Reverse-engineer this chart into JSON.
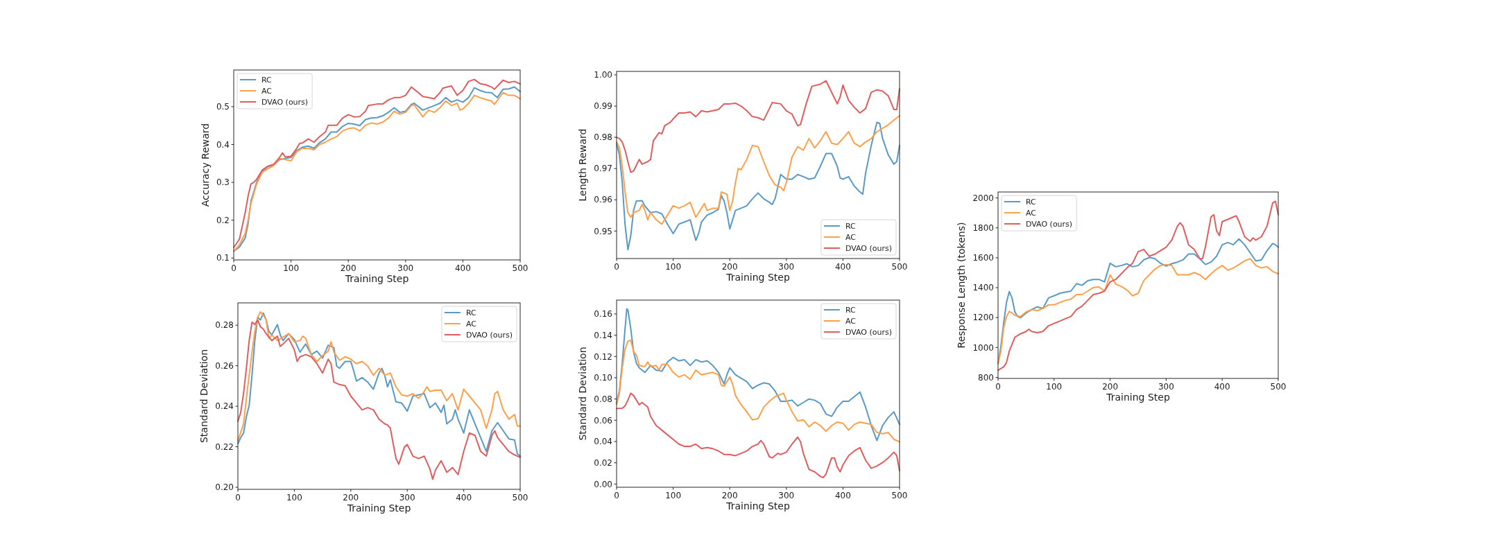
{
  "chart_data": [
    {
      "type": "line",
      "xlabel": "Training Step",
      "ylabel": "Accuracy Reward",
      "xlim": [
        0,
        500
      ],
      "xticks": [
        0,
        100,
        200,
        300,
        400,
        500
      ],
      "ylim": [
        0.095,
        0.597
      ],
      "yticks": [
        0.1,
        0.2,
        0.3,
        0.4,
        0.5
      ],
      "legend": "top left",
      "series": [
        {
          "name": "RC",
          "color": "#5799c7",
          "x": [
            0,
            10,
            20,
            25,
            30,
            35,
            40,
            50,
            60,
            70,
            80,
            90,
            100,
            110,
            120,
            130,
            140,
            150,
            160,
            170,
            180,
            190,
            200,
            210,
            220,
            230,
            240,
            250,
            260,
            270,
            280,
            290,
            300,
            310,
            315,
            330,
            340,
            350,
            360,
            370,
            380,
            390,
            400,
            410,
            420,
            430,
            440,
            450,
            460,
            470,
            480,
            490,
            500
          ],
          "values": [
            0.118,
            0.129,
            0.153,
            0.19,
            0.25,
            0.275,
            0.3,
            0.33,
            0.342,
            0.345,
            0.36,
            0.363,
            0.366,
            0.384,
            0.393,
            0.396,
            0.39,
            0.405,
            0.415,
            0.433,
            0.433,
            0.448,
            0.456,
            0.454,
            0.45,
            0.466,
            0.47,
            0.471,
            0.476,
            0.485,
            0.497,
            0.485,
            0.488,
            0.506,
            0.509,
            0.491,
            0.497,
            0.503,
            0.509,
            0.524,
            0.512,
            0.518,
            0.512,
            0.524,
            0.55,
            0.543,
            0.538,
            0.537,
            0.524,
            0.546,
            0.547,
            0.552,
            0.54
          ]
        },
        {
          "name": "AC",
          "color": "#ff9f4a",
          "x": [
            0,
            10,
            20,
            25,
            30,
            40,
            50,
            60,
            70,
            80,
            90,
            100,
            110,
            120,
            130,
            140,
            150,
            160,
            170,
            180,
            190,
            200,
            210,
            220,
            230,
            240,
            250,
            260,
            270,
            280,
            290,
            300,
            310,
            315,
            330,
            340,
            350,
            360,
            370,
            380,
            390,
            395,
            400,
            410,
            420,
            430,
            440,
            450,
            455,
            470,
            480,
            490,
            500
          ],
          "values": [
            0.118,
            0.135,
            0.165,
            0.2,
            0.244,
            0.296,
            0.327,
            0.336,
            0.345,
            0.363,
            0.36,
            0.357,
            0.381,
            0.39,
            0.39,
            0.386,
            0.4,
            0.406,
            0.415,
            0.421,
            0.436,
            0.442,
            0.444,
            0.436,
            0.451,
            0.457,
            0.454,
            0.459,
            0.47,
            0.488,
            0.48,
            0.485,
            0.503,
            0.505,
            0.473,
            0.491,
            0.485,
            0.497,
            0.515,
            0.503,
            0.509,
            0.491,
            0.494,
            0.509,
            0.53,
            0.524,
            0.519,
            0.515,
            0.506,
            0.537,
            0.53,
            0.53,
            0.521
          ]
        },
        {
          "name": "DVAO (ours)",
          "color": "#e05d5e",
          "x": [
            0,
            10,
            20,
            25,
            30,
            35,
            40,
            50,
            60,
            70,
            80,
            85,
            90,
            100,
            110,
            115,
            120,
            130,
            140,
            150,
            160,
            165,
            180,
            190,
            200,
            210,
            220,
            230,
            235,
            250,
            260,
            270,
            280,
            290,
            300,
            310,
            320,
            330,
            340,
            350,
            360,
            365,
            380,
            390,
            400,
            410,
            420,
            430,
            440,
            450,
            455,
            470,
            480,
            490,
            500
          ],
          "values": [
            0.128,
            0.15,
            0.22,
            0.263,
            0.296,
            0.3,
            0.308,
            0.333,
            0.343,
            0.348,
            0.366,
            0.378,
            0.367,
            0.369,
            0.39,
            0.403,
            0.404,
            0.415,
            0.406,
            0.421,
            0.433,
            0.451,
            0.451,
            0.47,
            0.479,
            0.473,
            0.474,
            0.488,
            0.503,
            0.507,
            0.507,
            0.518,
            0.524,
            0.524,
            0.53,
            0.552,
            0.54,
            0.527,
            0.524,
            0.521,
            0.537,
            0.549,
            0.555,
            0.53,
            0.543,
            0.567,
            0.572,
            0.561,
            0.558,
            0.552,
            0.546,
            0.57,
            0.564,
            0.567,
            0.56
          ]
        }
      ]
    },
    {
      "type": "line",
      "xlabel": "Training Step",
      "ylabel": "Length Reward",
      "xlim": [
        0,
        500
      ],
      "xticks": [
        0,
        100,
        200,
        300,
        400,
        500
      ],
      "ylim": [
        0.9412,
        1.0011
      ],
      "yticks": [
        0.95,
        0.96,
        0.97,
        0.98,
        0.99,
        {
          "value": 1,
          "label": "1.00"
        }
      ],
      "legend": "bottom right",
      "series": [
        {
          "name": "RC",
          "color": "#5799c7",
          "x": [
            0,
            5,
            10,
            15,
            20,
            25,
            30,
            35,
            45,
            50,
            60,
            70,
            80,
            90,
            100,
            110,
            120,
            130,
            140,
            145,
            150,
            160,
            170,
            180,
            185,
            190,
            195,
            200,
            205,
            210,
            220,
            230,
            240,
            250,
            260,
            270,
            275,
            280,
            290,
            300,
            310,
            320,
            330,
            340,
            350,
            360,
            370,
            380,
            390,
            395,
            400,
            410,
            420,
            430,
            435,
            440,
            450,
            460,
            465,
            470,
            480,
            490,
            495,
            500
          ],
          "values": [
            0.978,
            0.9744,
            0.9655,
            0.952,
            0.944,
            0.9484,
            0.9566,
            0.9596,
            0.9597,
            0.958,
            0.9559,
            0.9562,
            0.9555,
            0.9522,
            0.9492,
            0.9522,
            0.9529,
            0.9536,
            0.947,
            0.9492,
            0.9529,
            0.9551,
            0.9559,
            0.957,
            0.9614,
            0.9596,
            0.9559,
            0.9507,
            0.9536,
            0.9566,
            0.9573,
            0.9581,
            0.9603,
            0.9622,
            0.9603,
            0.9592,
            0.9585,
            0.9603,
            0.9681,
            0.9666,
            0.9666,
            0.9681,
            0.9674,
            0.9666,
            0.967,
            0.9707,
            0.9748,
            0.9748,
            0.9707,
            0.967,
            0.9666,
            0.9674,
            0.9644,
            0.9625,
            0.9618,
            0.9685,
            0.9774,
            0.9848,
            0.9844,
            0.9796,
            0.9744,
            0.9714,
            0.9722,
            0.9774
          ]
        },
        {
          "name": "AC",
          "color": "#ff9f4a",
          "x": [
            0,
            5,
            10,
            15,
            20,
            25,
            30,
            40,
            45,
            50,
            55,
            60,
            70,
            80,
            90,
            100,
            110,
            120,
            130,
            140,
            150,
            155,
            160,
            170,
            180,
            185,
            195,
            200,
            205,
            210,
            215,
            220,
            230,
            240,
            250,
            260,
            270,
            280,
            290,
            295,
            300,
            310,
            320,
            330,
            340,
            350,
            360,
            370,
            380,
            390,
            400,
            410,
            420,
            430,
            440,
            450,
            460,
            470,
            480,
            490,
            500
          ],
          "values": [
            0.9785,
            0.9766,
            0.9707,
            0.9625,
            0.9559,
            0.9544,
            0.9559,
            0.9566,
            0.9585,
            0.9566,
            0.9536,
            0.9559,
            0.9536,
            0.9522,
            0.9551,
            0.9581,
            0.9573,
            0.9581,
            0.9592,
            0.9544,
            0.9573,
            0.9588,
            0.9566,
            0.9573,
            0.9573,
            0.9625,
            0.9618,
            0.9566,
            0.9596,
            0.9655,
            0.97,
            0.9696,
            0.9729,
            0.9774,
            0.977,
            0.9722,
            0.9677,
            0.9648,
            0.964,
            0.9629,
            0.9655,
            0.9737,
            0.977,
            0.9759,
            0.9796,
            0.9766,
            0.9789,
            0.9818,
            0.9781,
            0.9777,
            0.9796,
            0.9818,
            0.9781,
            0.977,
            0.9785,
            0.9796,
            0.9818,
            0.9829,
            0.984,
            0.9855,
            0.9869
          ]
        },
        {
          "name": "DVAO (ours)",
          "color": "#e05d5e",
          "x": [
            0,
            5,
            10,
            15,
            20,
            25,
            30,
            40,
            45,
            55,
            60,
            65,
            75,
            80,
            85,
            95,
            100,
            110,
            120,
            130,
            140,
            150,
            160,
            170,
            180,
            190,
            200,
            210,
            220,
            230,
            240,
            250,
            260,
            270,
            275,
            290,
            300,
            310,
            320,
            325,
            335,
            345,
            360,
            370,
            380,
            390,
            395,
            400,
            410,
            420,
            430,
            440,
            450,
            460,
            470,
            480,
            490,
            495,
            500
          ],
          "values": [
            0.98,
            0.9796,
            0.9785,
            0.9759,
            0.9722,
            0.9688,
            0.9692,
            0.9729,
            0.9714,
            0.9722,
            0.9729,
            0.9789,
            0.9815,
            0.9811,
            0.9837,
            0.9848,
            0.9859,
            0.9878,
            0.9878,
            0.9881,
            0.9866,
            0.9885,
            0.9881,
            0.9885,
            0.9889,
            0.9907,
            0.9907,
            0.9909,
            0.99,
            0.9885,
            0.9866,
            0.9863,
            0.9855,
            0.9892,
            0.9911,
            0.9907,
            0.9885,
            0.9874,
            0.9837,
            0.9841,
            0.9907,
            0.9963,
            0.997,
            0.9981,
            0.9944,
            0.9907,
            0.9929,
            0.9967,
            0.9918,
            0.9896,
            0.9878,
            0.9892,
            0.9944,
            0.9952,
            0.9948,
            0.9933,
            0.9889,
            0.9889,
            0.9955
          ]
        }
      ]
    },
    {
      "type": "line",
      "xlabel": "Training Step",
      "ylabel": "Response Length (tokens)",
      "xlim": [
        0,
        500
      ],
      "xticks": [
        0,
        100,
        200,
        300,
        400,
        500
      ],
      "ylim": [
        793,
        2040
      ],
      "yticks": [
        800,
        1000,
        1200,
        1400,
        1600,
        1800,
        2000
      ],
      "legend": "top left",
      "series": [
        {
          "name": "RC",
          "color": "#5799c7",
          "x": [
            0,
            5,
            10,
            15,
            20,
            25,
            30,
            35,
            40,
            50,
            60,
            70,
            80,
            90,
            100,
            110,
            120,
            130,
            140,
            150,
            160,
            170,
            180,
            190,
            200,
            210,
            220,
            230,
            240,
            250,
            260,
            270,
            280,
            290,
            300,
            310,
            320,
            330,
            340,
            350,
            360,
            370,
            380,
            390,
            400,
            410,
            420,
            430,
            440,
            450,
            460,
            470,
            480,
            490,
            495,
            500
          ],
          "values": [
            890,
            1006,
            1161,
            1300,
            1374,
            1331,
            1238,
            1207,
            1199,
            1230,
            1254,
            1272,
            1261,
            1331,
            1346,
            1362,
            1370,
            1377,
            1427,
            1416,
            1447,
            1455,
            1455,
            1439,
            1563,
            1540,
            1548,
            1560,
            1540,
            1548,
            1586,
            1602,
            1594,
            1563,
            1545,
            1560,
            1571,
            1586,
            1625,
            1625,
            1594,
            1555,
            1571,
            1610,
            1687,
            1702,
            1687,
            1726,
            1687,
            1633,
            1579,
            1586,
            1648,
            1695,
            1687,
            1671
          ]
        },
        {
          "name": "AC",
          "color": "#ff9f4a",
          "x": [
            0,
            5,
            10,
            15,
            20,
            25,
            30,
            40,
            50,
            60,
            70,
            80,
            90,
            100,
            110,
            120,
            130,
            140,
            150,
            160,
            170,
            180,
            190,
            200,
            210,
            220,
            230,
            240,
            250,
            260,
            270,
            280,
            290,
            300,
            310,
            320,
            330,
            340,
            350,
            360,
            370,
            380,
            390,
            400,
            410,
            420,
            430,
            440,
            450,
            460,
            470,
            480,
            490,
            500
          ],
          "values": [
            890,
            975,
            1130,
            1207,
            1241,
            1230,
            1215,
            1207,
            1238,
            1254,
            1246,
            1261,
            1285,
            1285,
            1300,
            1315,
            1323,
            1354,
            1354,
            1377,
            1401,
            1405,
            1377,
            1486,
            1424,
            1408,
            1385,
            1346,
            1362,
            1447,
            1486,
            1524,
            1548,
            1555,
            1548,
            1486,
            1486,
            1486,
            1501,
            1486,
            1455,
            1493,
            1524,
            1548,
            1517,
            1532,
            1555,
            1579,
            1594,
            1548,
            1532,
            1540,
            1509,
            1493
          ]
        },
        {
          "name": "DVAO (ours)",
          "color": "#e05d5e",
          "x": [
            0,
            10,
            15,
            20,
            25,
            30,
            40,
            50,
            55,
            60,
            70,
            80,
            90,
            100,
            110,
            120,
            130,
            140,
            150,
            160,
            170,
            180,
            190,
            200,
            210,
            220,
            230,
            240,
            250,
            260,
            270,
            280,
            290,
            300,
            310,
            320,
            325,
            330,
            340,
            350,
            360,
            365,
            370,
            380,
            385,
            390,
            395,
            400,
            410,
            420,
            425,
            430,
            440,
            450,
            455,
            460,
            470,
            480,
            490,
            495,
            500
          ],
          "values": [
            848,
            870,
            898,
            975,
            1021,
            1068,
            1091,
            1107,
            1122,
            1107,
            1099,
            1107,
            1145,
            1161,
            1176,
            1192,
            1207,
            1254,
            1277,
            1315,
            1354,
            1362,
            1377,
            1439,
            1455,
            1493,
            1532,
            1563,
            1641,
            1656,
            1610,
            1625,
            1648,
            1671,
            1718,
            1811,
            1834,
            1811,
            1687,
            1656,
            1594,
            1594,
            1671,
            1873,
            1888,
            1780,
            1749,
            1842,
            1857,
            1873,
            1881,
            1842,
            1741,
            1710,
            1733,
            1718,
            1741,
            1811,
            1966,
            1978,
            1888
          ]
        }
      ]
    },
    {
      "type": "line",
      "xlabel": "Training Step",
      "ylabel": "Standard Deviation",
      "xlim": [
        0,
        500
      ],
      "xticks": [
        0,
        100,
        200,
        300,
        400,
        500
      ],
      "ylim": [
        0.199,
        0.291
      ],
      "yticks": [
        {
          "value": 0.2,
          "label": "0.20"
        },
        0.22,
        0.24,
        0.26,
        0.28
      ],
      "legend": "top right",
      "series": [
        {
          "name": "RC",
          "color": "#5799c7",
          "x": [
            0,
            5,
            10,
            15,
            20,
            25,
            30,
            35,
            40,
            45,
            50,
            55,
            60,
            70,
            75,
            80,
            90,
            100,
            110,
            120,
            130,
            140,
            150,
            160,
            170,
            175,
            180,
            190,
            200,
            205,
            210,
            220,
            230,
            240,
            250,
            255,
            260,
            265,
            270,
            280,
            290,
            300,
            310,
            320,
            330,
            340,
            350,
            360,
            365,
            370,
            380,
            385,
            390,
            400,
            410,
            420,
            430,
            440,
            450,
            460,
            470,
            480,
            490,
            495,
            500
          ],
          "values": [
            0.2215,
            0.2245,
            0.2268,
            0.2348,
            0.2405,
            0.2553,
            0.2724,
            0.2838,
            0.2826,
            0.286,
            0.2826,
            0.2769,
            0.2752,
            0.2803,
            0.2752,
            0.2724,
            0.2758,
            0.2729,
            0.2667,
            0.2707,
            0.2655,
            0.2672,
            0.2638,
            0.2701,
            0.269,
            0.2598,
            0.2587,
            0.2621,
            0.2621,
            0.2576,
            0.2524,
            0.2541,
            0.2519,
            0.2484,
            0.2564,
            0.2587,
            0.2553,
            0.2496,
            0.253,
            0.2422,
            0.2416,
            0.2376,
            0.245,
            0.2456,
            0.2462,
            0.2393,
            0.2416,
            0.237,
            0.2405,
            0.2313,
            0.2336,
            0.2382,
            0.2336,
            0.2268,
            0.2382,
            0.2313,
            0.2245,
            0.2177,
            0.2279,
            0.2319,
            0.2279,
            0.2239,
            0.2234,
            0.2165,
            0.2154
          ]
        },
        {
          "name": "AC",
          "color": "#ff9f4a",
          "x": [
            0,
            10,
            15,
            20,
            25,
            30,
            35,
            40,
            45,
            50,
            55,
            60,
            70,
            80,
            90,
            100,
            110,
            115,
            120,
            130,
            140,
            150,
            160,
            165,
            170,
            180,
            190,
            200,
            210,
            220,
            230,
            240,
            250,
            260,
            270,
            280,
            290,
            300,
            310,
            320,
            330,
            335,
            340,
            350,
            360,
            370,
            380,
            390,
            400,
            410,
            420,
            430,
            440,
            450,
            455,
            460,
            470,
            480,
            490,
            495,
            500
          ],
          "values": [
            0.223,
            0.2313,
            0.2439,
            0.2553,
            0.2667,
            0.2769,
            0.2838,
            0.2866,
            0.2849,
            0.2826,
            0.2735,
            0.2752,
            0.2724,
            0.2741,
            0.2758,
            0.2718,
            0.2724,
            0.2746,
            0.2735,
            0.2655,
            0.2621,
            0.265,
            0.2672,
            0.2718,
            0.2667,
            0.2627,
            0.2644,
            0.2632,
            0.261,
            0.2621,
            0.2598,
            0.2553,
            0.2587,
            0.2553,
            0.2564,
            0.2496,
            0.2456,
            0.245,
            0.2462,
            0.2439,
            0.2473,
            0.2496,
            0.2473,
            0.2479,
            0.2479,
            0.2427,
            0.2462,
            0.2382,
            0.2484,
            0.245,
            0.2416,
            0.2382,
            0.2291,
            0.2382,
            0.2462,
            0.2473,
            0.2382,
            0.2336,
            0.2359,
            0.2302,
            0.2302
          ]
        },
        {
          "name": "DVAO (ours)",
          "color": "#e05d5e",
          "x": [
            0,
            5,
            10,
            15,
            20,
            25,
            30,
            35,
            40,
            45,
            50,
            60,
            70,
            75,
            80,
            90,
            100,
            105,
            110,
            120,
            130,
            140,
            150,
            160,
            165,
            170,
            180,
            190,
            200,
            210,
            220,
            230,
            240,
            250,
            260,
            265,
            270,
            280,
            285,
            295,
            300,
            310,
            320,
            330,
            340,
            345,
            350,
            360,
            370,
            380,
            390,
            400,
            410,
            420,
            430,
            440,
            450,
            455,
            460,
            470,
            480,
            490,
            500
          ],
          "values": [
            0.2325,
            0.237,
            0.2462,
            0.2587,
            0.2724,
            0.2815,
            0.2803,
            0.2826,
            0.2792,
            0.2781,
            0.2758,
            0.2724,
            0.2746,
            0.2695,
            0.2707,
            0.2735,
            0.2678,
            0.2621,
            0.2644,
            0.2655,
            0.2644,
            0.261,
            0.2564,
            0.2632,
            0.261,
            0.2519,
            0.2507,
            0.2501,
            0.245,
            0.2416,
            0.2382,
            0.2393,
            0.2382,
            0.2336,
            0.2313,
            0.2308,
            0.2291,
            0.2142,
            0.2114,
            0.2199,
            0.2211,
            0.2154,
            0.2142,
            0.2154,
            0.2091,
            0.204,
            0.2085,
            0.2131,
            0.2074,
            0.2097,
            0.2063,
            0.2177,
            0.2268,
            0.2256,
            0.2177,
            0.2154,
            0.2256,
            0.2279,
            0.2245,
            0.2211,
            0.2177,
            0.216,
            0.2148
          ]
        }
      ]
    },
    {
      "type": "line",
      "xlabel": "Training Step",
      "ylabel": "Standard Deviation",
      "xlim": [
        0,
        500
      ],
      "xticks": [
        0,
        100,
        200,
        300,
        400,
        500
      ],
      "ylim": [
        -0.003,
        0.173
      ],
      "yticks": [
        {
          "value": 0,
          "label": "0.00"
        },
        0.02,
        0.04,
        0.06,
        0.08,
        {
          "value": 0.1,
          "label": "0.10"
        },
        0.12,
        0.14,
        0.16
      ],
      "legend": "top right",
      "series": [
        {
          "name": "RC",
          "color": "#5799c7",
          "x": [
            0,
            5,
            10,
            15,
            18,
            20,
            25,
            30,
            35,
            40,
            50,
            55,
            60,
            70,
            80,
            90,
            100,
            110,
            120,
            130,
            140,
            150,
            160,
            170,
            180,
            190,
            195,
            200,
            210,
            220,
            230,
            240,
            250,
            260,
            270,
            280,
            290,
            300,
            310,
            320,
            330,
            340,
            350,
            360,
            370,
            380,
            390,
            400,
            410,
            420,
            430,
            440,
            450,
            460,
            470,
            480,
            490,
            500
          ],
          "values": [
            0.076,
            0.0876,
            0.1137,
            0.1463,
            0.1648,
            0.1637,
            0.1463,
            0.1246,
            0.1137,
            0.1093,
            0.105,
            0.1083,
            0.1115,
            0.1072,
            0.1061,
            0.1148,
            0.1191,
            0.1159,
            0.117,
            0.1115,
            0.117,
            0.1148,
            0.1159,
            0.1115,
            0.105,
            0.0941,
            0.1028,
            0.1093,
            0.1028,
            0.0996,
            0.0963,
            0.0898,
            0.093,
            0.0952,
            0.0941,
            0.0876,
            0.0778,
            0.0778,
            0.0789,
            0.0735,
            0.0767,
            0.08,
            0.0789,
            0.0757,
            0.0659,
            0.0637,
            0.0724,
            0.0778,
            0.0778,
            0.0822,
            0.0865,
            0.0724,
            0.055,
            0.0409,
            0.055,
            0.0626,
            0.068,
            0.0561
          ]
        },
        {
          "name": "AC",
          "color": "#ff9f4a",
          "x": [
            0,
            5,
            10,
            15,
            20,
            25,
            30,
            35,
            40,
            50,
            55,
            60,
            70,
            75,
            80,
            90,
            100,
            110,
            120,
            130,
            140,
            150,
            160,
            170,
            180,
            185,
            190,
            200,
            205,
            210,
            220,
            230,
            240,
            250,
            260,
            270,
            280,
            290,
            295,
            300,
            310,
            320,
            330,
            340,
            350,
            360,
            370,
            380,
            390,
            400,
            410,
            420,
            430,
            440,
            450,
            460,
            470,
            480,
            490,
            500
          ],
          "values": [
            0.075,
            0.0854,
            0.1093,
            0.1267,
            0.1343,
            0.1354,
            0.1246,
            0.1213,
            0.1115,
            0.1104,
            0.1148,
            0.1104,
            0.1115,
            0.1072,
            0.1126,
            0.1126,
            0.105,
            0.1007,
            0.1028,
            0.0985,
            0.1072,
            0.1028,
            0.1039,
            0.105,
            0.1028,
            0.093,
            0.092,
            0.1007,
            0.0941,
            0.0833,
            0.0746,
            0.068,
            0.0604,
            0.0615,
            0.0724,
            0.0778,
            0.0822,
            0.0843,
            0.0854,
            0.0789,
            0.068,
            0.0593,
            0.0604,
            0.0539,
            0.0583,
            0.055,
            0.0496,
            0.055,
            0.0583,
            0.0572,
            0.0507,
            0.0561,
            0.0583,
            0.0572,
            0.0561,
            0.0485,
            0.0474,
            0.0485,
            0.042,
            0.0398
          ]
        },
        {
          "name": "DVAO (ours)",
          "color": "#e05d5e",
          "x": [
            0,
            10,
            15,
            20,
            25,
            30,
            40,
            45,
            50,
            55,
            60,
            70,
            80,
            90,
            100,
            110,
            120,
            130,
            140,
            150,
            160,
            170,
            180,
            190,
            200,
            210,
            220,
            230,
            240,
            250,
            255,
            260,
            270,
            275,
            285,
            290,
            300,
            310,
            320,
            325,
            330,
            340,
            350,
            360,
            365,
            370,
            380,
            385,
            390,
            395,
            400,
            410,
            420,
            430,
            440,
            450,
            460,
            470,
            480,
            490,
            495,
            500
          ],
          "values": [
            0.071,
            0.0713,
            0.0735,
            0.0789,
            0.0854,
            0.0833,
            0.0746,
            0.0767,
            0.0746,
            0.0724,
            0.0637,
            0.055,
            0.0507,
            0.0463,
            0.042,
            0.0376,
            0.0354,
            0.0354,
            0.0376,
            0.0333,
            0.0343,
            0.0333,
            0.0311,
            0.0278,
            0.0278,
            0.0267,
            0.0289,
            0.0311,
            0.0354,
            0.0376,
            0.0409,
            0.0376,
            0.0257,
            0.0246,
            0.0289,
            0.0278,
            0.03,
            0.0376,
            0.0441,
            0.0398,
            0.0289,
            0.0137,
            0.0115,
            0.0072,
            0.0061,
            0.0093,
            0.0246,
            0.0246,
            0.0159,
            0.0115,
            0.018,
            0.0267,
            0.0311,
            0.0343,
            0.0224,
            0.0148,
            0.017,
            0.0202,
            0.0246,
            0.03,
            0.0267,
            0.0126
          ]
        }
      ]
    }
  ]
}
